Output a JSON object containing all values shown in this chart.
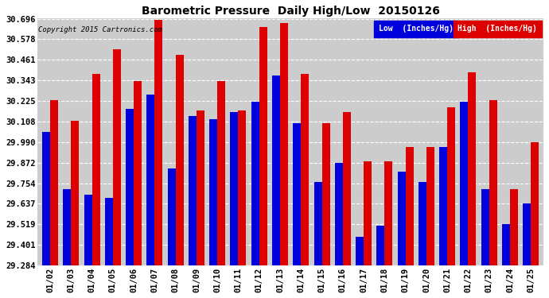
{
  "title": "Barometric Pressure  Daily High/Low  20150126",
  "copyright": "Copyright 2015 Cartronics.com",
  "legend_low": "Low  (Inches/Hg)",
  "legend_high": "High  (Inches/Hg)",
  "low_color": "#0000dd",
  "high_color": "#dd0000",
  "bg_color": "#ffffff",
  "plot_bg_color": "#cccccc",
  "grid_color": "#ffffff",
  "dates": [
    "01/02",
    "01/03",
    "01/04",
    "01/05",
    "01/06",
    "01/07",
    "01/08",
    "01/09",
    "01/10",
    "01/11",
    "01/12",
    "01/13",
    "01/14",
    "01/15",
    "01/16",
    "01/17",
    "01/18",
    "01/19",
    "01/20",
    "01/21",
    "01/22",
    "01/23",
    "01/24",
    "01/25"
  ],
  "low_values": [
    30.05,
    29.72,
    29.69,
    29.67,
    30.18,
    30.26,
    29.84,
    30.14,
    30.12,
    30.16,
    30.22,
    30.37,
    30.1,
    29.76,
    29.87,
    29.45,
    29.51,
    29.82,
    29.76,
    29.96,
    30.22,
    29.72,
    29.52,
    29.64
  ],
  "high_values": [
    30.23,
    30.11,
    30.38,
    30.52,
    30.34,
    30.69,
    30.49,
    30.17,
    30.34,
    30.17,
    30.65,
    30.67,
    30.38,
    30.1,
    30.16,
    29.88,
    29.88,
    29.96,
    29.96,
    30.19,
    30.39,
    30.23,
    29.72,
    29.99
  ],
  "ylim_min": 29.284,
  "ylim_max": 30.696,
  "yticks": [
    29.284,
    29.401,
    29.519,
    29.637,
    29.754,
    29.872,
    29.99,
    30.108,
    30.225,
    30.343,
    30.461,
    30.578,
    30.696
  ]
}
